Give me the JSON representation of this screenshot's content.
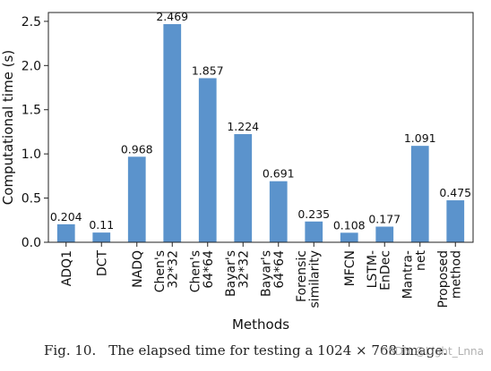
{
  "chart_data": {
    "type": "bar",
    "categories": [
      {
        "key": "adq1",
        "lines": [
          "ADQ1"
        ]
      },
      {
        "key": "dct",
        "lines": [
          "DCT"
        ]
      },
      {
        "key": "nadq",
        "lines": [
          "NADQ"
        ]
      },
      {
        "key": "chens-32",
        "lines": [
          "Chen's",
          "32*32"
        ]
      },
      {
        "key": "chens-64",
        "lines": [
          "Chen's",
          "64*64"
        ]
      },
      {
        "key": "bayars-32",
        "lines": [
          "Bayar's",
          "32*32"
        ]
      },
      {
        "key": "bayars-64",
        "lines": [
          "Bayar's",
          "64*64"
        ]
      },
      {
        "key": "forensic",
        "lines": [
          "Forensic",
          "similarity"
        ]
      },
      {
        "key": "mfcn",
        "lines": [
          "MFCN"
        ]
      },
      {
        "key": "lstm",
        "lines": [
          "LSTM-",
          "EnDec"
        ]
      },
      {
        "key": "mantra",
        "lines": [
          "Mantra-",
          "net"
        ]
      },
      {
        "key": "proposed",
        "lines": [
          "Proposed",
          "method"
        ]
      }
    ],
    "values": [
      0.204,
      0.11,
      0.968,
      2.469,
      1.857,
      1.224,
      0.691,
      0.235,
      0.108,
      0.177,
      1.091,
      0.475
    ],
    "value_labels": [
      "0.204",
      "0.11",
      "0.968",
      "2.469",
      "1.857",
      "1.224",
      "0.691",
      "0.235",
      "0.108",
      "0.177",
      "1.091",
      "0.475"
    ],
    "xlabel": "Methods",
    "ylabel": "Computational time (s)",
    "ylim": [
      0,
      2.6
    ],
    "yticks": [
      "0.0",
      "0.5",
      "1.0",
      "1.5",
      "2.0",
      "2.5"
    ],
    "bar_color": "#5b93cc",
    "grid": false,
    "legend": "none"
  },
  "caption": {
    "label": "Fig. 10.",
    "text": "The elapsed time for testing a 1024 × 768 image."
  },
  "watermark": "CSDN @Light_Lnna"
}
